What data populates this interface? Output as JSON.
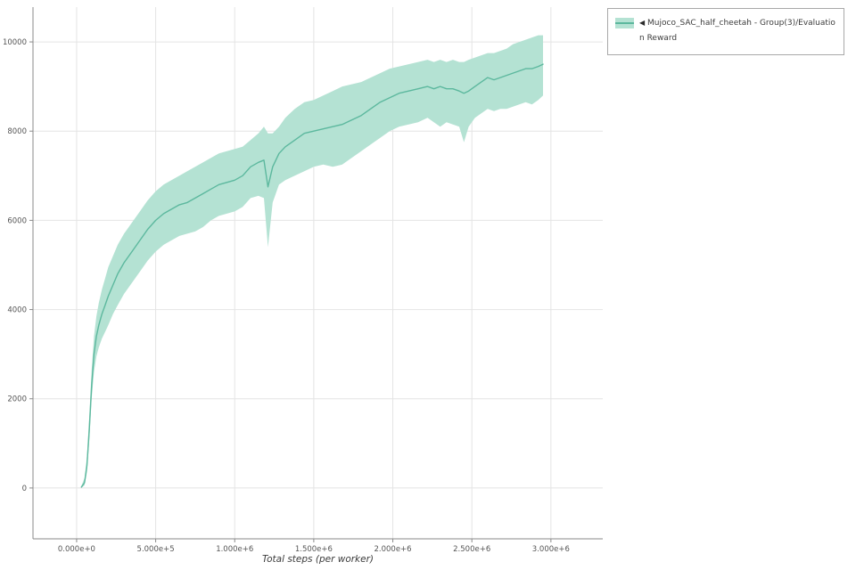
{
  "legend": {
    "marker": "◀",
    "label": "Mujoco_SAC_half_cheetah - Group(3)/Evaluation Reward"
  },
  "chart_data": {
    "type": "line",
    "title": "",
    "xlabel": "Total steps (per worker)",
    "ylabel": "",
    "grid": true,
    "legend_position": "outside-top-right",
    "xlim": [
      -276000,
      3328000
    ],
    "ylim": [
      -1140,
      10780
    ],
    "xticks": {
      "values": [
        0,
        500000,
        1000000,
        1500000,
        2000000,
        2500000,
        3000000
      ],
      "labels": [
        "0.000e+0",
        "5.000e+5",
        "1.000e+6",
        "1.500e+6",
        "2.000e+6",
        "2.500e+6",
        "3.000e+6"
      ]
    },
    "yticks": {
      "values": [
        0,
        2000,
        4000,
        6000,
        8000,
        10000
      ],
      "labels": [
        "0",
        "2000",
        "4000",
        "6000",
        "8000",
        "10000"
      ]
    },
    "colors": {
      "line": "#5cb89e",
      "band": "#b4e2d3",
      "grid": "#e4e4e4",
      "axis": "#8a8a8a",
      "tick_text": "#555555"
    },
    "series": [
      {
        "name": "Mujoco_SAC_half_cheetah - Group(3)/Evaluation Reward",
        "x": [
          30000,
          50000,
          65000,
          80000,
          95000,
          110000,
          125000,
          140000,
          160000,
          180000,
          200000,
          230000,
          260000,
          300000,
          350000,
          400000,
          450000,
          500000,
          550000,
          600000,
          650000,
          700000,
          750000,
          800000,
          850000,
          900000,
          950000,
          1000000,
          1050000,
          1100000,
          1150000,
          1185000,
          1210000,
          1240000,
          1280000,
          1320000,
          1380000,
          1440000,
          1500000,
          1560000,
          1620000,
          1680000,
          1740000,
          1800000,
          1860000,
          1920000,
          1980000,
          2040000,
          2100000,
          2160000,
          2220000,
          2260000,
          2300000,
          2340000,
          2380000,
          2420000,
          2450000,
          2480000,
          2520000,
          2560000,
          2600000,
          2640000,
          2680000,
          2720000,
          2760000,
          2800000,
          2840000,
          2880000,
          2920000,
          2950000
        ],
        "mean": [
          20,
          120,
          500,
          1300,
          2300,
          3000,
          3400,
          3650,
          3900,
          4100,
          4300,
          4550,
          4800,
          5050,
          5300,
          5550,
          5800,
          6000,
          6150,
          6250,
          6350,
          6400,
          6500,
          6600,
          6700,
          6800,
          6850,
          6900,
          7000,
          7200,
          7300,
          7350,
          6750,
          7200,
          7500,
          7650,
          7800,
          7950,
          8000,
          8050,
          8100,
          8150,
          8250,
          8350,
          8500,
          8650,
          8750,
          8850,
          8900,
          8950,
          9000,
          8950,
          9000,
          8950,
          8950,
          8900,
          8850,
          8900,
          9000,
          9100,
          9200,
          9150,
          9200,
          9250,
          9300,
          9350,
          9400,
          9400,
          9450,
          9500
        ],
        "lower": [
          5,
          60,
          350,
          1050,
          2000,
          2600,
          2950,
          3150,
          3350,
          3500,
          3650,
          3900,
          4100,
          4350,
          4600,
          4850,
          5100,
          5300,
          5450,
          5550,
          5650,
          5700,
          5750,
          5850,
          6000,
          6100,
          6150,
          6200,
          6300,
          6500,
          6550,
          6500,
          5400,
          6400,
          6800,
          6900,
          7000,
          7100,
          7200,
          7250,
          7200,
          7250,
          7400,
          7550,
          7700,
          7850,
          8000,
          8100,
          8150,
          8200,
          8300,
          8200,
          8100,
          8200,
          8150,
          8100,
          7750,
          8100,
          8300,
          8400,
          8500,
          8450,
          8500,
          8500,
          8550,
          8600,
          8650,
          8600,
          8700,
          8800
        ],
        "upper": [
          50,
          220,
          700,
          1600,
          2650,
          3400,
          3850,
          4150,
          4450,
          4700,
          4950,
          5200,
          5450,
          5700,
          5950,
          6200,
          6450,
          6650,
          6800,
          6900,
          7000,
          7100,
          7200,
          7300,
          7400,
          7500,
          7550,
          7600,
          7650,
          7800,
          7950,
          8100,
          7950,
          7950,
          8100,
          8300,
          8500,
          8650,
          8700,
          8800,
          8900,
          9000,
          9050,
          9100,
          9200,
          9300,
          9400,
          9450,
          9500,
          9550,
          9600,
          9550,
          9600,
          9550,
          9600,
          9550,
          9550,
          9600,
          9650,
          9700,
          9750,
          9750,
          9800,
          9850,
          9950,
          10000,
          10050,
          10100,
          10150,
          10150
        ]
      }
    ]
  }
}
